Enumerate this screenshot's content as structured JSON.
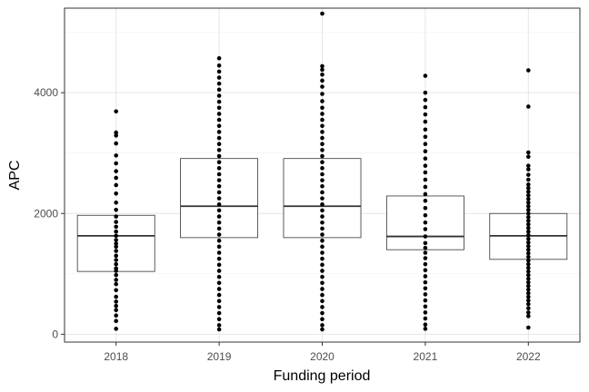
{
  "chart_data": {
    "type": "boxplot",
    "title": "",
    "xlabel": "Funding period",
    "ylabel": "APC",
    "categories": [
      "2018",
      "2019",
      "2020",
      "2021",
      "2022"
    ],
    "ylim": [
      -130,
      5400
    ],
    "yticks": [
      0,
      2000,
      4000
    ],
    "grid": true,
    "boxes": [
      {
        "category": "2018",
        "q1": 1040,
        "median": 1630,
        "q3": 1970
      },
      {
        "category": "2019",
        "q1": 1600,
        "median": 2120,
        "q3": 2910
      },
      {
        "category": "2020",
        "q1": 1600,
        "median": 2120,
        "q3": 2910
      },
      {
        "category": "2021",
        "q1": 1400,
        "median": 1620,
        "q3": 2290
      },
      {
        "category": "2022",
        "q1": 1240,
        "median": 1630,
        "q3": 2000
      }
    ],
    "points": [
      {
        "category": "2018",
        "values": [
          3690,
          3340,
          3290,
          3160,
          2960,
          2830,
          2700,
          2590,
          2470,
          2330,
          2180,
          2060,
          1950,
          1860,
          1780,
          1700,
          1630,
          1560,
          1500,
          1450,
          1380,
          1300,
          1230,
          1160,
          1090,
          1050,
          980,
          900,
          830,
          730,
          620,
          540,
          470,
          400,
          310,
          220,
          90
        ]
      },
      {
        "category": "2019",
        "values": [
          4570,
          4450,
          4350,
          4250,
          4150,
          4050,
          3950,
          3850,
          3750,
          3650,
          3550,
          3450,
          3350,
          3250,
          3150,
          3050,
          2950,
          2850,
          2750,
          2650,
          2550,
          2450,
          2350,
          2250,
          2150,
          2050,
          1950,
          1850,
          1750,
          1650,
          1550,
          1450,
          1350,
          1250,
          1150,
          1050,
          950,
          850,
          750,
          650,
          550,
          450,
          350,
          250,
          150,
          80
        ]
      },
      {
        "category": "2020",
        "values": [
          5310,
          4440,
          4380,
          4300,
          4200,
          4100,
          3980,
          3860,
          3750,
          3650,
          3550,
          3450,
          3350,
          3250,
          3150,
          3050,
          2950,
          2850,
          2750,
          2650,
          2550,
          2450,
          2350,
          2250,
          2150,
          2050,
          1950,
          1850,
          1750,
          1650,
          1550,
          1450,
          1350,
          1250,
          1150,
          1050,
          950,
          850,
          750,
          650,
          550,
          450,
          350,
          250,
          150,
          80
        ]
      },
      {
        "category": "2021",
        "values": [
          4280,
          4000,
          3880,
          3760,
          3640,
          3520,
          3390,
          3270,
          3150,
          3030,
          2910,
          2790,
          2680,
          2560,
          2440,
          2320,
          2210,
          2090,
          1970,
          1850,
          1740,
          1620,
          1510,
          1430,
          1350,
          1260,
          1160,
          1060,
          960,
          860,
          760,
          660,
          560,
          460,
          360,
          260,
          160,
          90
        ]
      },
      {
        "category": "2022",
        "values": [
          4370,
          3770,
          3010,
          2940,
          2790,
          2730,
          2640,
          2560,
          2480,
          2420,
          2360,
          2300,
          2240,
          2180,
          2120,
          2060,
          2000,
          1940,
          1880,
          1820,
          1760,
          1700,
          1640,
          1580,
          1520,
          1460,
          1400,
          1340,
          1280,
          1220,
          1160,
          1100,
          1040,
          980,
          920,
          860,
          800,
          740,
          680,
          620,
          560,
          500,
          430,
          360,
          300,
          110
        ]
      }
    ]
  }
}
